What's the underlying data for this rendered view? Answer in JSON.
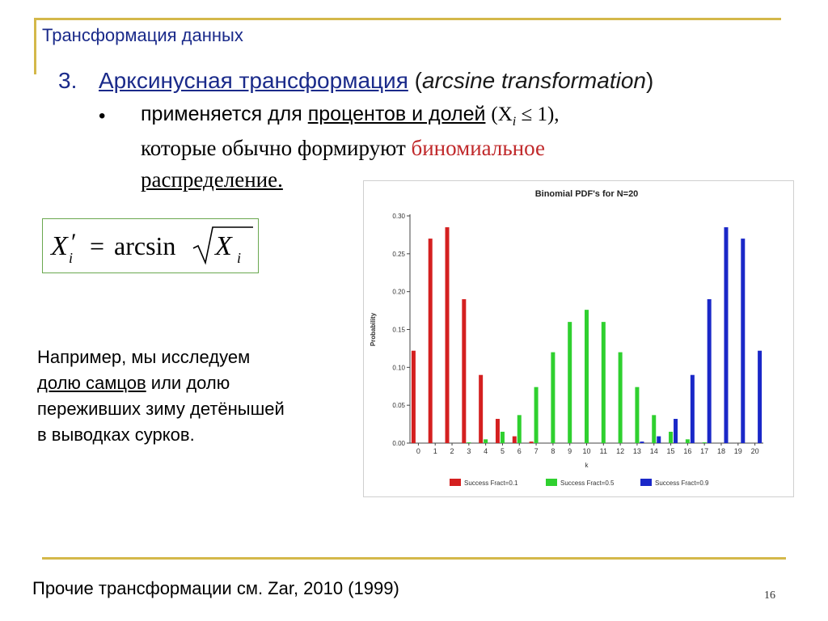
{
  "header": {
    "section_title": "Трансформация данных"
  },
  "item": {
    "number": "3.",
    "title_ru": "Арксинусная трансформация",
    "title_en": "arcsine transformation",
    "bullet_symbol": "•",
    "line1_prefix": "применяется для ",
    "line1_underlined": "процентов и долей",
    "line1_math": "(X",
    "line1_math_sub": "i",
    "line1_math_tail": " ≤ 1),",
    "line2_prefix": "которые обычно формируют ",
    "line2_red": "биномиальное",
    "line3": "распределение."
  },
  "formula": {
    "lhs": "X",
    "prime": "′",
    "sub": "i",
    "eq": "=",
    "fn": "arcsin",
    "rhs": "X",
    "rhs_sub": "i"
  },
  "example": {
    "l1": "Например, мы исследуем",
    "l2_underlined": "долю самцов",
    "l2_tail": " или долю",
    "l3": "переживших зиму детёнышей",
    "l4": "в выводках сурков."
  },
  "footer": {
    "text": "Прочие трансформации см. Zar, 2010 (1999)",
    "page": "16"
  },
  "chart_data": {
    "type": "bar",
    "title": "Binomial PDF's for N=20",
    "xlabel": "k",
    "ylabel": "Probability",
    "ylim": [
      0,
      0.3
    ],
    "yticks": [
      "0.00",
      "0.05",
      "0.10",
      "0.15",
      "0.20",
      "0.25",
      "0.30"
    ],
    "categories": [
      "0",
      "1",
      "2",
      "3",
      "4",
      "5",
      "6",
      "7",
      "8",
      "9",
      "10",
      "11",
      "12",
      "13",
      "14",
      "15",
      "16",
      "17",
      "18",
      "19",
      "20"
    ],
    "legend_position": "bottom",
    "series": [
      {
        "name": "Success Fract=0.1",
        "color": "#d42020",
        "values": [
          0.122,
          0.27,
          0.285,
          0.19,
          0.09,
          0.032,
          0.009,
          0.002,
          0,
          0,
          0,
          0,
          0,
          0,
          0,
          0,
          0,
          0,
          0,
          0,
          0
        ]
      },
      {
        "name": "Success Fract=0.5",
        "color": "#2fd02f",
        "values": [
          0,
          0,
          0,
          0.001,
          0.005,
          0.015,
          0.037,
          0.074,
          0.12,
          0.16,
          0.176,
          0.16,
          0.12,
          0.074,
          0.037,
          0.015,
          0.005,
          0.001,
          0,
          0,
          0
        ]
      },
      {
        "name": "Success Fract=0.9",
        "color": "#1a28c8",
        "values": [
          0,
          0,
          0,
          0,
          0,
          0,
          0,
          0,
          0,
          0,
          0,
          0,
          0,
          0.002,
          0.009,
          0.032,
          0.09,
          0.19,
          0.285,
          0.27,
          0.122
        ]
      }
    ]
  }
}
